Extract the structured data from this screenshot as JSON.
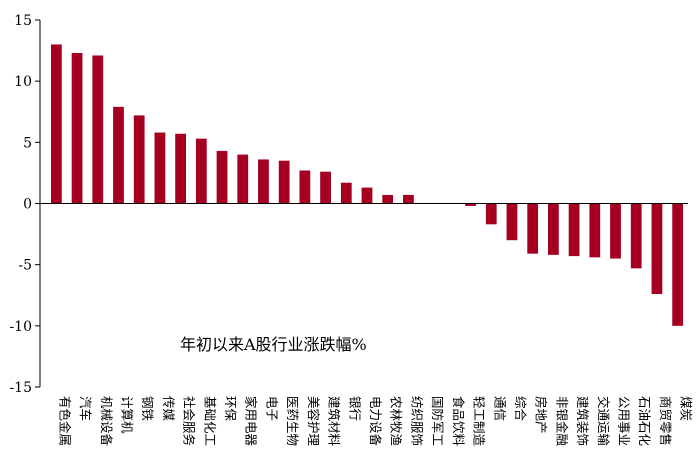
{
  "chart_data": {
    "type": "bar",
    "annotation": "年初以来A股行业涨跌幅%",
    "categories": [
      "有色金属",
      "汽车",
      "机械设备",
      "计算机",
      "钢铁",
      "传媒",
      "社会服务",
      "基础化工",
      "环保",
      "家用电器",
      "电子",
      "医药生物",
      "美容护理",
      "建筑材料",
      "银行",
      "电力设备",
      "农林牧渔",
      "纺织服饰",
      "国防军工",
      "食品饮料",
      "轻工制造",
      "通信",
      "综合",
      "房地产",
      "非银金融",
      "建筑装饰",
      "交通运输",
      "公用事业",
      "石油石化",
      "商贸零售",
      "煤炭"
    ],
    "values": [
      13.0,
      12.3,
      12.1,
      7.9,
      7.2,
      5.8,
      5.7,
      5.3,
      4.3,
      4.0,
      3.6,
      3.5,
      2.7,
      2.6,
      1.7,
      1.3,
      0.7,
      0.7,
      0.0,
      0.0,
      -0.2,
      -1.7,
      -3.0,
      -4.1,
      -4.2,
      -4.3,
      -4.4,
      -4.5,
      -5.3,
      -7.4,
      -10.0
    ],
    "ylim": [
      -15,
      15
    ],
    "yticks": [
      15,
      10,
      5,
      0,
      -5,
      -10,
      -15
    ],
    "bar_color": "#A50021",
    "grid": false,
    "legend": "none"
  }
}
